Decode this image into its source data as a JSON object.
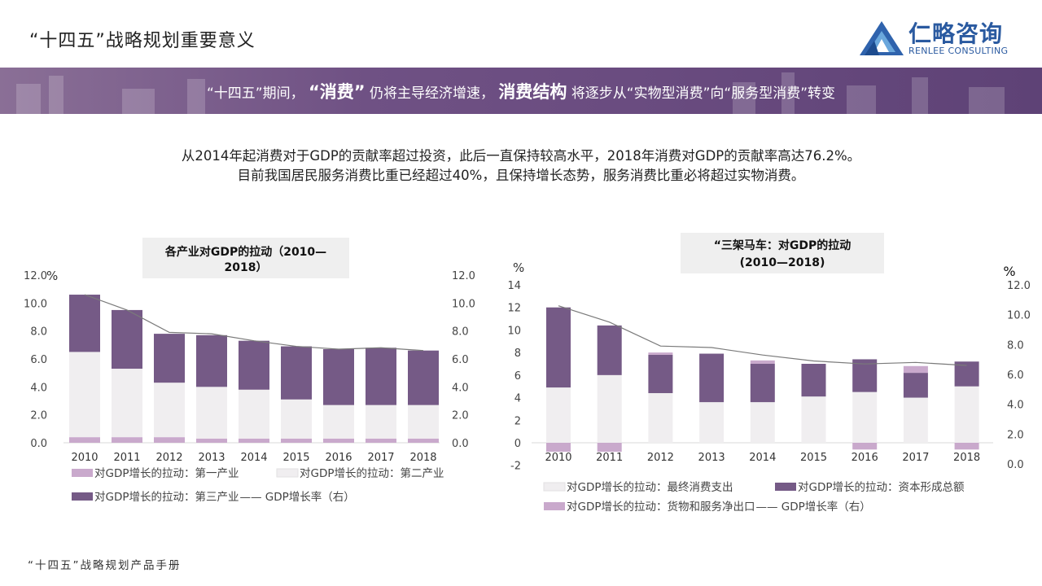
{
  "page": {
    "title": "“十四五”战略规划重要意义",
    "logo_name": "仁略咨询",
    "logo_en": "RENLEE CONSULTING",
    "footer": "“十四五”战略规划产品手册"
  },
  "banner": {
    "seg1": "“十四五”期间，",
    "seg2": "“消费”",
    "seg3": "仍将主导经济增速，",
    "seg4": "消费结构",
    "seg5": "将逐步从“实物型消费”向“服务型消费”转变"
  },
  "intro": {
    "line1": "从2014年起消费对于GDP的贡献率超过投资，此后一直保持较高水平，2018年消费对GDP的贡献率高达76.2%。",
    "line2": "目前我国居民服务消费比重已经超过40%，且保持增长态势，服务消费比重必将超过实物消费。"
  },
  "colors": {
    "dark": "#755a86",
    "light": "#f0eef0",
    "pink": "#c9a9cc",
    "line": "#7a7a7a"
  },
  "chart_data": [
    {
      "type": "bar",
      "stacked": true,
      "title_lines": [
        "各产业对GDP的拉动（2010—",
        "2018）"
      ],
      "categories": [
        "2010",
        "2011",
        "2012",
        "2013",
        "2014",
        "2015",
        "2016",
        "2017",
        "2018"
      ],
      "series": [
        {
          "name": "对GDP增长的拉动：第一产业",
          "values": [
            0.4,
            0.4,
            0.4,
            0.3,
            0.3,
            0.3,
            0.3,
            0.3,
            0.3
          ]
        },
        {
          "name": "对GDP增长的拉动：第二产业",
          "values": [
            6.1,
            4.9,
            3.9,
            3.7,
            3.5,
            2.8,
            2.4,
            2.4,
            2.4
          ]
        },
        {
          "name": "对GDP增长的拉动：第三产业",
          "values": [
            4.1,
            4.2,
            3.5,
            3.7,
            3.5,
            3.8,
            4.0,
            4.1,
            3.9
          ]
        }
      ],
      "line": {
        "name": "GDP增长率（右）",
        "values": [
          10.6,
          9.5,
          7.9,
          7.8,
          7.3,
          6.9,
          6.7,
          6.8,
          6.6
        ]
      },
      "ylim": [
        0,
        12
      ],
      "y_ticks": [
        "0.0",
        "2.0",
        "4.0",
        "6.0",
        "8.0",
        "10.0",
        "12.0"
      ],
      "y2lim": [
        0,
        12
      ],
      "y2_ticks": [
        "0.0",
        "2.0",
        "4.0",
        "6.0",
        "8.0",
        "10.0",
        "12.0"
      ],
      "ylabel": "%",
      "legend": "bottom",
      "legend_line_label": "—— GDP增长率（右）"
    },
    {
      "type": "bar",
      "stacked": true,
      "title_lines": [
        "“三架马车：对GDP的拉动",
        "(2010—2018)"
      ],
      "categories": [
        "2010",
        "2011",
        "2012",
        "2013",
        "2014",
        "2015",
        "2016",
        "2017",
        "2018"
      ],
      "series": [
        {
          "name": "对GDP增长的拉动：最终消费支出",
          "values": [
            4.9,
            6.0,
            4.4,
            3.6,
            3.6,
            4.1,
            4.5,
            4.0,
            5.0
          ]
        },
        {
          "name": "对GDP增长的拉动：资本形成总额",
          "values": [
            7.1,
            4.4,
            3.4,
            4.3,
            3.4,
            2.9,
            2.9,
            2.2,
            2.2
          ]
        },
        {
          "name": "对GDP增长的拉动：货物和服务净出口",
          "values": [
            -0.8,
            -0.8,
            0.2,
            0.0,
            0.3,
            0.0,
            -0.6,
            0.6,
            -0.6
          ]
        }
      ],
      "line": {
        "name": "GDP增长率（右）",
        "values": [
          10.6,
          9.5,
          7.9,
          7.8,
          7.3,
          6.9,
          6.7,
          6.8,
          6.6
        ]
      },
      "ylim": [
        -2,
        14
      ],
      "y_ticks": [
        "-2",
        "0",
        "2",
        "4",
        "6",
        "8",
        "10",
        "12",
        "14"
      ],
      "y2lim": [
        0,
        12
      ],
      "y2_ticks": [
        "0.0",
        "2.0",
        "4.0",
        "6.0",
        "8.0",
        "10.0",
        "12.0"
      ],
      "ylabel": "%",
      "y2label": "%",
      "legend": "bottom",
      "legend_line_label": "—— GDP增长率（右）"
    }
  ]
}
